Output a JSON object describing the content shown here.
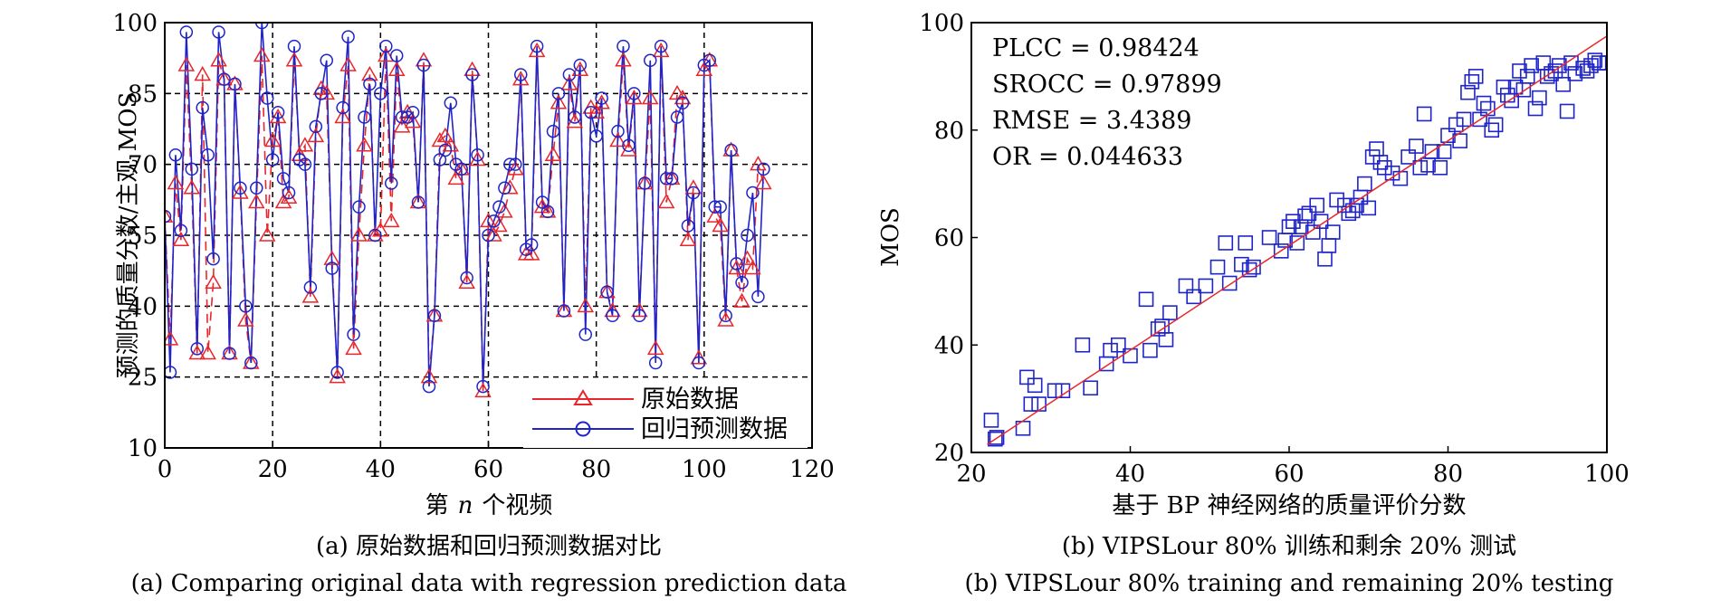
{
  "chart_data": [
    {
      "type": "line",
      "xlabel_prefix": "第",
      "xlabel_var": "n",
      "xlabel_suffix": "个视频",
      "ylabel": "预测的质量分数/主观 MOS",
      "xlim": [
        0,
        120
      ],
      "ylim": [
        10,
        100
      ],
      "xticks": [
        0,
        20,
        40,
        60,
        80,
        100,
        120
      ],
      "yticks": [
        10,
        25,
        40,
        55,
        70,
        85,
        100
      ],
      "grid": "dashed at x=20,40,60,80,100 and y=25,40,55,70,85",
      "legend_position": "bottom-right",
      "caption_cn": "(a) 原始数据和回归预测数据对比",
      "caption_en": "(a) Comparing original data with regression prediction data",
      "colors": {
        "original": "#e8262b",
        "predicted": "#1f24c8",
        "grid": "#000000"
      },
      "series": [
        {
          "name": "原始数据",
          "marker": "triangle",
          "values": [
            59,
            33,
            66,
            54,
            91,
            65,
            30,
            89,
            30,
            45,
            92,
            88,
            30,
            87,
            64,
            37,
            28,
            62,
            93,
            55,
            75,
            80,
            62,
            63,
            92,
            72,
            74,
            42,
            76,
            86,
            85,
            50,
            25,
            80,
            91,
            31,
            55,
            74,
            89,
            55,
            56,
            93,
            58,
            90,
            78,
            81,
            79,
            62,
            92,
            25,
            38,
            75,
            76,
            74,
            67,
            69,
            45,
            90,
            71,
            22,
            58,
            55,
            57,
            60,
            65,
            69,
            88,
            51,
            51,
            94,
            61,
            60,
            72,
            83,
            39,
            87,
            79,
            90,
            40,
            82,
            81,
            83,
            43,
            39,
            75,
            92,
            73,
            84,
            39,
            66,
            84,
            31,
            94,
            62,
            67,
            85,
            84,
            54,
            65,
            29,
            90,
            92,
            59,
            57,
            37,
            73,
            48,
            41,
            50,
            48,
            70,
            66
          ]
        },
        {
          "name": "回归预测数据",
          "marker": "circle",
          "values": [
            59,
            26,
            72,
            56,
            98,
            69,
            31,
            82,
            72,
            50,
            98,
            88,
            30,
            87,
            65,
            40,
            28,
            65,
            100,
            84,
            71,
            81,
            67,
            64,
            95,
            71,
            70,
            44,
            78,
            85,
            92,
            48,
            26,
            82,
            97,
            34,
            61,
            80,
            87,
            55,
            85,
            95,
            66,
            93,
            80,
            80,
            81,
            62,
            91,
            23,
            38,
            71,
            73,
            83,
            70,
            69,
            46,
            89,
            72,
            23,
            55,
            58,
            61,
            65,
            70,
            70,
            89,
            52,
            53,
            95,
            62,
            60,
            77,
            85,
            39,
            89,
            80,
            91,
            34,
            81,
            76,
            84,
            43,
            38,
            77,
            95,
            74,
            85,
            38,
            66,
            92,
            28,
            95,
            67,
            67,
            80,
            83,
            57,
            64,
            28,
            91,
            92,
            61,
            61,
            38,
            73,
            49,
            45,
            55,
            64,
            42,
            69
          ]
        }
      ]
    },
    {
      "type": "scatter",
      "xlabel": "基于 BP 神经网络的质量评价分数",
      "ylabel": "MOS",
      "xlim": [
        20,
        100
      ],
      "ylim": [
        20,
        100
      ],
      "xticks": [
        20,
        40,
        60,
        80,
        100
      ],
      "yticks": [
        20,
        40,
        60,
        80,
        100
      ],
      "grid": "off",
      "legend_position": "none",
      "caption_cn": "(b) VIPSLour 80% 训练和剩余 20% 测试",
      "caption_en": "(b) VIPSLour 80% training and remaining 20% testing",
      "colors": {
        "points": "#1f24c8",
        "fit_line": "#e8262b"
      },
      "metrics": [
        {
          "label": "PLCC",
          "value": "0.98424"
        },
        {
          "label": "SROCC",
          "value": "0.97899"
        },
        {
          "label": "RMSE",
          "value": "3.4389"
        },
        {
          "label": "OR",
          "value": "0.044633"
        }
      ],
      "fit_line": {
        "x": [
          22,
          100
        ],
        "y": [
          21.5,
          97.5
        ]
      },
      "points": [
        [
          22.5,
          26
        ],
        [
          23,
          22.5
        ],
        [
          23.2,
          22.8
        ],
        [
          26.5,
          24.5
        ],
        [
          27,
          34
        ],
        [
          27.5,
          29
        ],
        [
          28,
          32.5
        ],
        [
          28.5,
          29
        ],
        [
          30.5,
          31.5
        ],
        [
          31.5,
          31.5
        ],
        [
          34,
          40
        ],
        [
          35,
          32
        ],
        [
          37,
          36.5
        ],
        [
          37.5,
          39
        ],
        [
          38.5,
          40
        ],
        [
          40,
          38
        ],
        [
          42,
          48.5
        ],
        [
          42.5,
          39
        ],
        [
          43.5,
          43
        ],
        [
          44.5,
          41
        ],
        [
          44,
          43.5
        ],
        [
          45,
          46
        ],
        [
          47,
          51
        ],
        [
          48,
          49
        ],
        [
          49.5,
          51
        ],
        [
          51,
          54.5
        ],
        [
          52,
          59
        ],
        [
          52.5,
          51.5
        ],
        [
          54,
          55
        ],
        [
          54.5,
          59
        ],
        [
          55,
          54
        ],
        [
          55.5,
          54.5
        ],
        [
          57.5,
          60
        ],
        [
          59,
          57.5
        ],
        [
          59.5,
          59.5
        ],
        [
          60,
          62
        ],
        [
          60.5,
          63
        ],
        [
          61,
          59
        ],
        [
          61.5,
          62
        ],
        [
          62,
          64
        ],
        [
          62.5,
          64.5
        ],
        [
          63,
          61
        ],
        [
          63.5,
          66
        ],
        [
          64,
          63
        ],
        [
          64.5,
          56
        ],
        [
          65,
          58.5
        ],
        [
          65.5,
          61
        ],
        [
          66,
          67
        ],
        [
          67,
          66
        ],
        [
          67.5,
          64.5
        ],
        [
          68,
          65
        ],
        [
          68.5,
          66
        ],
        [
          69,
          67.5
        ],
        [
          69.5,
          70
        ],
        [
          70,
          65.5
        ],
        [
          70.5,
          75
        ],
        [
          71,
          76.5
        ],
        [
          71.5,
          74
        ],
        [
          72,
          73
        ],
        [
          73,
          72
        ],
        [
          74,
          71
        ],
        [
          75,
          75
        ],
        [
          76,
          77
        ],
        [
          76.5,
          73
        ],
        [
          77,
          83
        ],
        [
          77.5,
          73.5
        ],
        [
          78,
          76
        ],
        [
          79,
          73
        ],
        [
          79.5,
          76
        ],
        [
          80,
          79
        ],
        [
          81,
          81
        ],
        [
          81.5,
          78
        ],
        [
          82,
          82
        ],
        [
          82.5,
          87
        ],
        [
          83,
          89
        ],
        [
          83.5,
          90
        ],
        [
          84,
          82
        ],
        [
          84.5,
          85
        ],
        [
          85,
          84
        ],
        [
          85.5,
          80
        ],
        [
          86,
          81
        ],
        [
          87,
          88
        ],
        [
          87.5,
          86.5
        ],
        [
          88,
          85.5
        ],
        [
          88.5,
          88
        ],
        [
          89,
          91
        ],
        [
          89.5,
          87.5
        ],
        [
          90,
          90
        ],
        [
          90.5,
          92
        ],
        [
          91,
          84
        ],
        [
          91.5,
          86
        ],
        [
          92,
          92.5
        ],
        [
          92.5,
          90
        ],
        [
          93,
          90.5
        ],
        [
          93.5,
          91
        ],
        [
          94,
          92
        ],
        [
          94.5,
          88.5
        ],
        [
          95,
          83.5
        ],
        [
          95.5,
          92.5
        ],
        [
          96,
          90.5
        ],
        [
          97,
          91.5
        ],
        [
          97.5,
          91
        ],
        [
          98,
          92
        ],
        [
          98.5,
          93
        ],
        [
          99,
          92.5
        ],
        [
          100,
          92.5
        ]
      ]
    }
  ]
}
